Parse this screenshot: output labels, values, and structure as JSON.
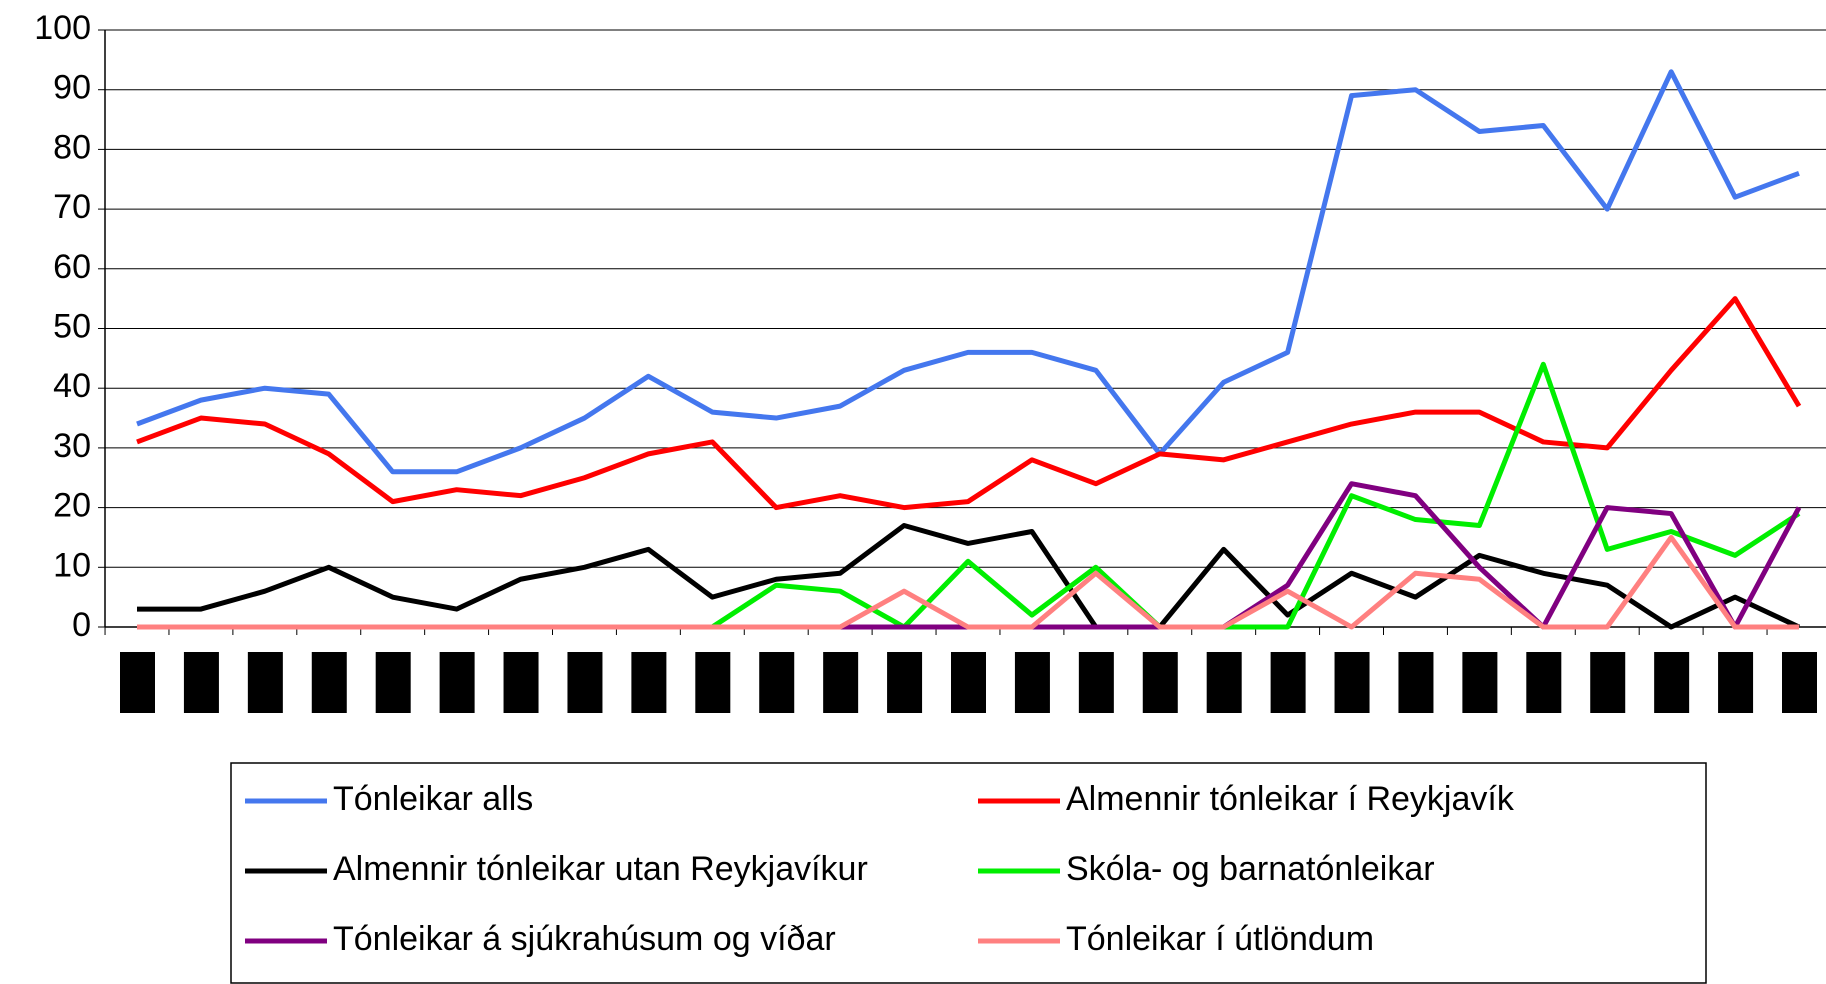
{
  "chart_data": {
    "type": "line",
    "categories": [
      null,
      null,
      null,
      null,
      null,
      null,
      null,
      null,
      null,
      null,
      null,
      null,
      null,
      null,
      null,
      null,
      null,
      null,
      null,
      null,
      null,
      null,
      null,
      null,
      null,
      null,
      null
    ],
    "ylim": [
      0,
      100
    ],
    "yticks": [
      0,
      10,
      20,
      30,
      40,
      50,
      60,
      70,
      80,
      90,
      100
    ],
    "grid": true,
    "series": [
      {
        "name": "Tónleikar alls",
        "color": "#4477ee",
        "values": [
          34,
          38,
          40,
          39,
          26,
          26,
          30,
          35,
          42,
          36,
          35,
          37,
          43,
          46,
          46,
          43,
          29,
          41,
          46,
          89,
          90,
          83,
          84,
          70,
          93,
          72,
          76
        ]
      },
      {
        "name": "Almennir tónleikar í Reykjavík",
        "color": "#ff0000",
        "values": [
          31,
          35,
          34,
          29,
          21,
          23,
          22,
          25,
          29,
          31,
          20,
          22,
          20,
          21,
          28,
          24,
          29,
          28,
          31,
          34,
          36,
          36,
          31,
          30,
          43,
          55,
          37
        ]
      },
      {
        "name": "Almennir tónleikar utan Reykjavíkur",
        "color": "#000000",
        "values": [
          3,
          3,
          6,
          10,
          5,
          3,
          8,
          10,
          13,
          5,
          8,
          9,
          17,
          14,
          16,
          0,
          0,
          13,
          2,
          9,
          5,
          12,
          9,
          7,
          0,
          5,
          0
        ]
      },
      {
        "name": "Skóla- og barnatónleikar",
        "color": "#00ee00",
        "values": [
          0,
          0,
          0,
          0,
          0,
          0,
          0,
          0,
          0,
          0,
          7,
          6,
          0,
          11,
          2,
          10,
          0,
          0,
          0,
          22,
          18,
          17,
          44,
          13,
          16,
          12,
          19
        ]
      },
      {
        "name": "Tónleikar á sjúkrahúsum og víðar",
        "color": "#800080",
        "values": [
          0,
          0,
          0,
          0,
          0,
          0,
          0,
          0,
          0,
          0,
          0,
          0,
          0,
          0,
          0,
          0,
          0,
          0,
          7,
          24,
          22,
          10,
          0,
          20,
          19,
          0,
          20
        ]
      },
      {
        "name": "Tónleikar í útlöndum",
        "color": "#ff8080",
        "values": [
          0,
          0,
          0,
          0,
          0,
          0,
          0,
          0,
          0,
          0,
          0,
          0,
          6,
          0,
          0,
          9,
          0,
          0,
          6,
          0,
          9,
          8,
          0,
          0,
          15,
          0,
          0
        ]
      }
    ],
    "legend": "bottom"
  }
}
